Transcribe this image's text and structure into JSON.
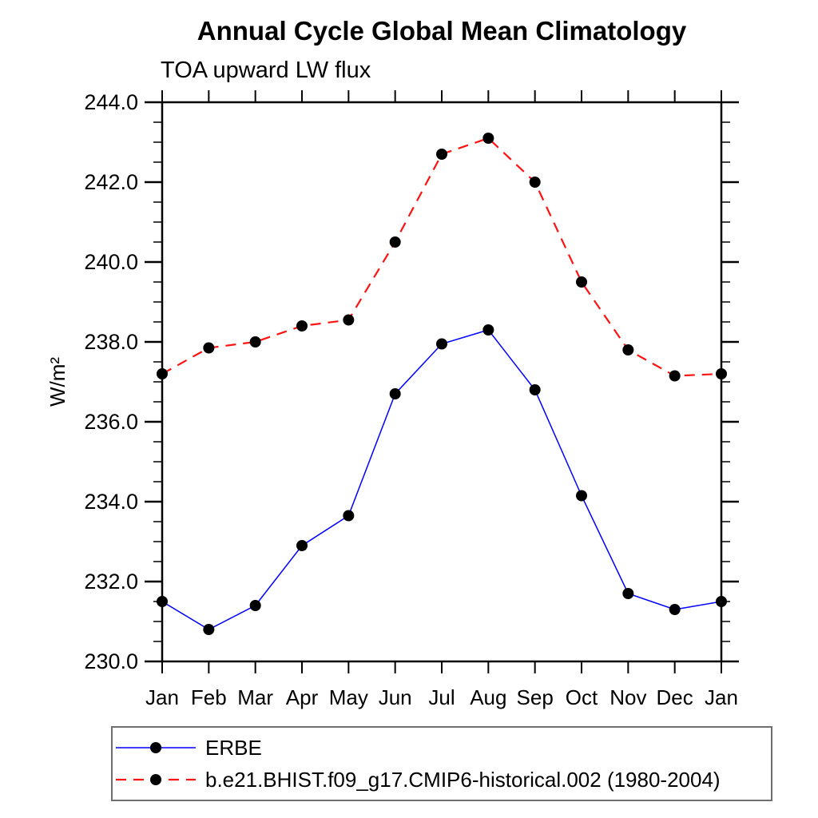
{
  "page": {
    "background": "#ffffff"
  },
  "chart_data": {
    "type": "line",
    "title": "Annual Cycle Global Mean Climatology",
    "subtitle": "TOA upward LW flux",
    "ylabel": "W/m²",
    "xlabel": "",
    "categories": [
      "Jan",
      "Feb",
      "Mar",
      "Apr",
      "May",
      "Jun",
      "Jul",
      "Aug",
      "Sep",
      "Oct",
      "Nov",
      "Dec",
      "Jan"
    ],
    "ylim": [
      230.0,
      244.0
    ],
    "ytick_major_step": 2.0,
    "ytick_minor_step": 0.5,
    "ytick_labels": [
      "230.0",
      "232.0",
      "234.0",
      "236.0",
      "238.0",
      "240.0",
      "242.0",
      "244.0"
    ],
    "grid": false,
    "legend_position": "bottom-left",
    "axis_color": "#000000",
    "marker_color": "#000000",
    "series": [
      {
        "name": "ERBE",
        "color": "#0000ff",
        "style": "solid",
        "marker": "filled-circle",
        "values": [
          231.5,
          230.8,
          231.4,
          232.9,
          233.65,
          236.7,
          237.95,
          238.3,
          236.8,
          234.15,
          231.7,
          231.3,
          231.5
        ]
      },
      {
        "name": "b.e21.BHIST.f09_g17.CMIP6-historical.002 (1980-2004)",
        "color": "#ff1212",
        "style": "dashed",
        "marker": "filled-circle",
        "values": [
          237.2,
          237.85,
          238.0,
          238.4,
          238.55,
          240.5,
          242.7,
          243.1,
          242.0,
          239.5,
          237.8,
          237.15,
          237.2
        ]
      }
    ]
  }
}
